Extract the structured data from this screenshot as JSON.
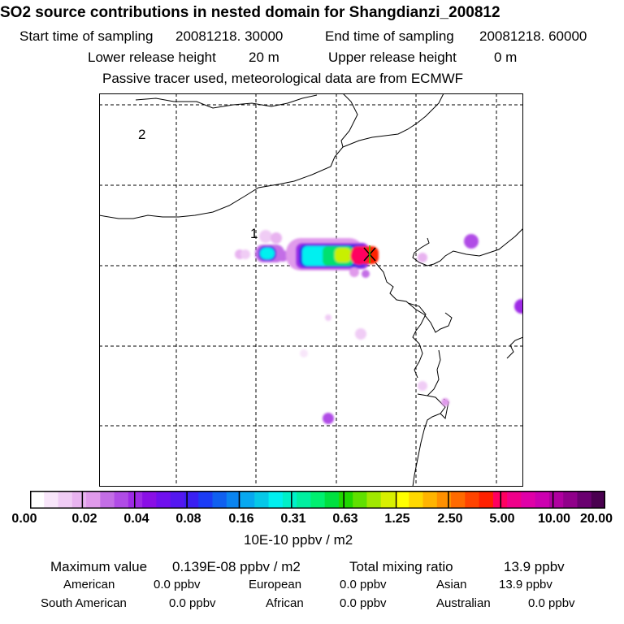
{
  "title": "SO2 source contributions in nested domain for Shangdianzi_200812",
  "header": {
    "start_label": "Start time of sampling",
    "start_value": "20081218. 30000",
    "end_label": "End time of sampling",
    "end_value": "20081218. 60000",
    "lower_label": "Lower release height",
    "lower_value": "20 m",
    "upper_label": "Upper release height",
    "upper_value": "0 m",
    "note": "Passive tracer used, meteorological data are from ECMWF"
  },
  "map": {
    "domain_labels": [
      "2",
      "1"
    ],
    "station_marker": "x-marker-icon"
  },
  "colorbar": {
    "tick_labels": [
      "0.00",
      "0.02",
      "0.04",
      "0.08",
      "0.16",
      "0.31",
      "0.63",
      "1.25",
      "2.50",
      "5.00",
      "10.00",
      "20.00"
    ],
    "units": "10E-10 ppbv / m2",
    "colors": [
      "#ffffff",
      "#f8e6fa",
      "#f0ccf5",
      "#e8b3f0",
      "#e09aeb",
      "#c36ee6",
      "#b04ce6",
      "#9e2ae6",
      "#8a0fe6",
      "#7010ee",
      "#5418f0",
      "#3a20f2",
      "#1c3cf5",
      "#1060f0",
      "#0a84f0",
      "#08a8f0",
      "#06c8e8",
      "#00f0f0",
      "#00f0c8",
      "#00f0a0",
      "#00f070",
      "#00e040",
      "#20d800",
      "#60e000",
      "#a0e800",
      "#d8f000",
      "#ffff00",
      "#ffd800",
      "#ffb400",
      "#ff9000",
      "#ff6a00",
      "#ff4400",
      "#ff2000",
      "#ff0060",
      "#f0008a",
      "#e000a8",
      "#cc00b0",
      "#b000a0",
      "#90008a",
      "#6a0070",
      "#4a0050"
    ]
  },
  "footer": {
    "max_label": "Maximum value",
    "max_value": "0.139E-08 ppbv / m2",
    "total_label": "Total mixing ratio",
    "total_value": "13.9 ppbv",
    "regions": [
      {
        "name": "American",
        "value": "0.0 ppbv"
      },
      {
        "name": "European",
        "value": "0.0 ppbv"
      },
      {
        "name": "Asian",
        "value": "13.9 ppbv"
      },
      {
        "name": "South American",
        "value": "0.0 ppbv"
      },
      {
        "name": "African",
        "value": "0.0 ppbv"
      },
      {
        "name": "Australian",
        "value": "0.0 ppbv"
      }
    ]
  }
}
